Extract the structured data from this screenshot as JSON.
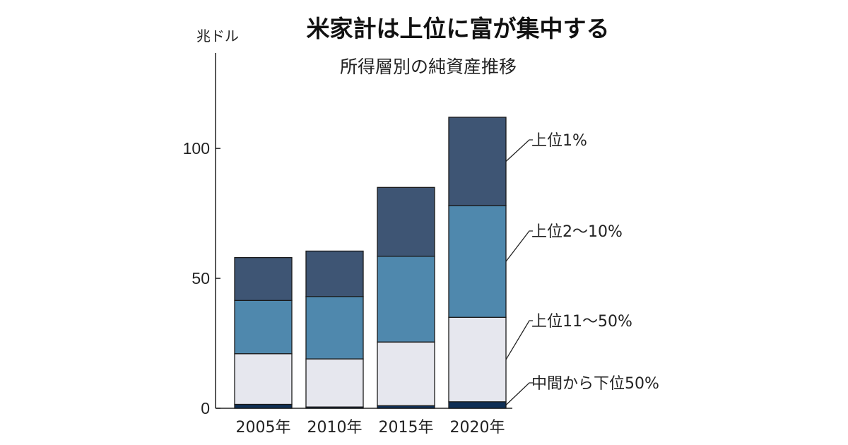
{
  "chart_data": {
    "type": "bar",
    "stacked": true,
    "title": "米家計は上位に富が集中する",
    "subtitle": "所得層別の純資産推移",
    "unit": "兆ドル",
    "categories": [
      "2005年",
      "2010年",
      "2015年",
      "2020年"
    ],
    "ylim": [
      0,
      140
    ],
    "yticks": [
      0,
      50,
      100
    ],
    "grid": false,
    "legend_position": "right",
    "series": [
      {
        "name": "中間から下位50%",
        "color": "#0f2f55",
        "values": [
          1.5,
          0.5,
          1,
          2.5
        ]
      },
      {
        "name": "上位11〜50%",
        "color": "#e6e7ee",
        "values": [
          19.5,
          18.5,
          24.5,
          32.5
        ]
      },
      {
        "name": "上位2〜10%",
        "color": "#4f88ad",
        "values": [
          20.5,
          24,
          33,
          43
        ]
      },
      {
        "name": "上位1%",
        "color": "#3e5574",
        "values": [
          16.5,
          17.5,
          26.5,
          34
        ]
      }
    ]
  }
}
